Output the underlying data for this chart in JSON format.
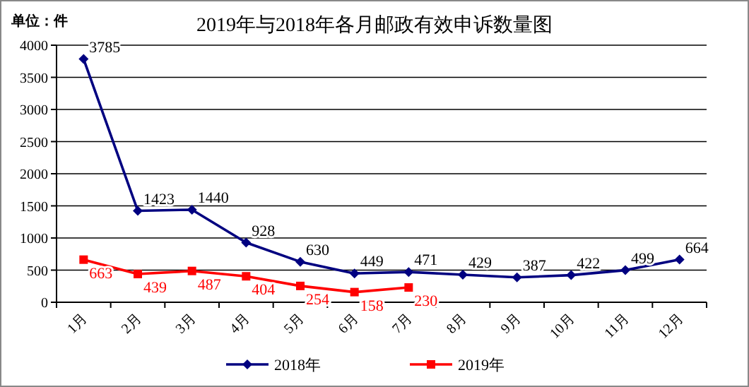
{
  "chart_data": {
    "type": "line",
    "title": "2019年与2018年各月邮政有效申诉数量图",
    "annotations": [
      "单位：件"
    ],
    "categories": [
      "1月",
      "2月",
      "3月",
      "4月",
      "5月",
      "6月",
      "7月",
      "8月",
      "9月",
      "10月",
      "11月",
      "12月"
    ],
    "series": [
      {
        "name": "2018年",
        "color": "#000080",
        "marker": "diamond",
        "values": [
          3785,
          1423,
          1440,
          928,
          630,
          449,
          471,
          429,
          387,
          422,
          499,
          664
        ]
      },
      {
        "name": "2019年",
        "color": "#ff0000",
        "marker": "square",
        "values": [
          663,
          439,
          487,
          404,
          254,
          158,
          230,
          null,
          null,
          null,
          null,
          null
        ]
      }
    ],
    "ylim": [
      0,
      4000
    ],
    "yticks": [
      0,
      500,
      1000,
      1500,
      2000,
      2500,
      3000,
      3500,
      4000
    ],
    "grid": "y",
    "legend": "bottom",
    "data_labels": true
  }
}
